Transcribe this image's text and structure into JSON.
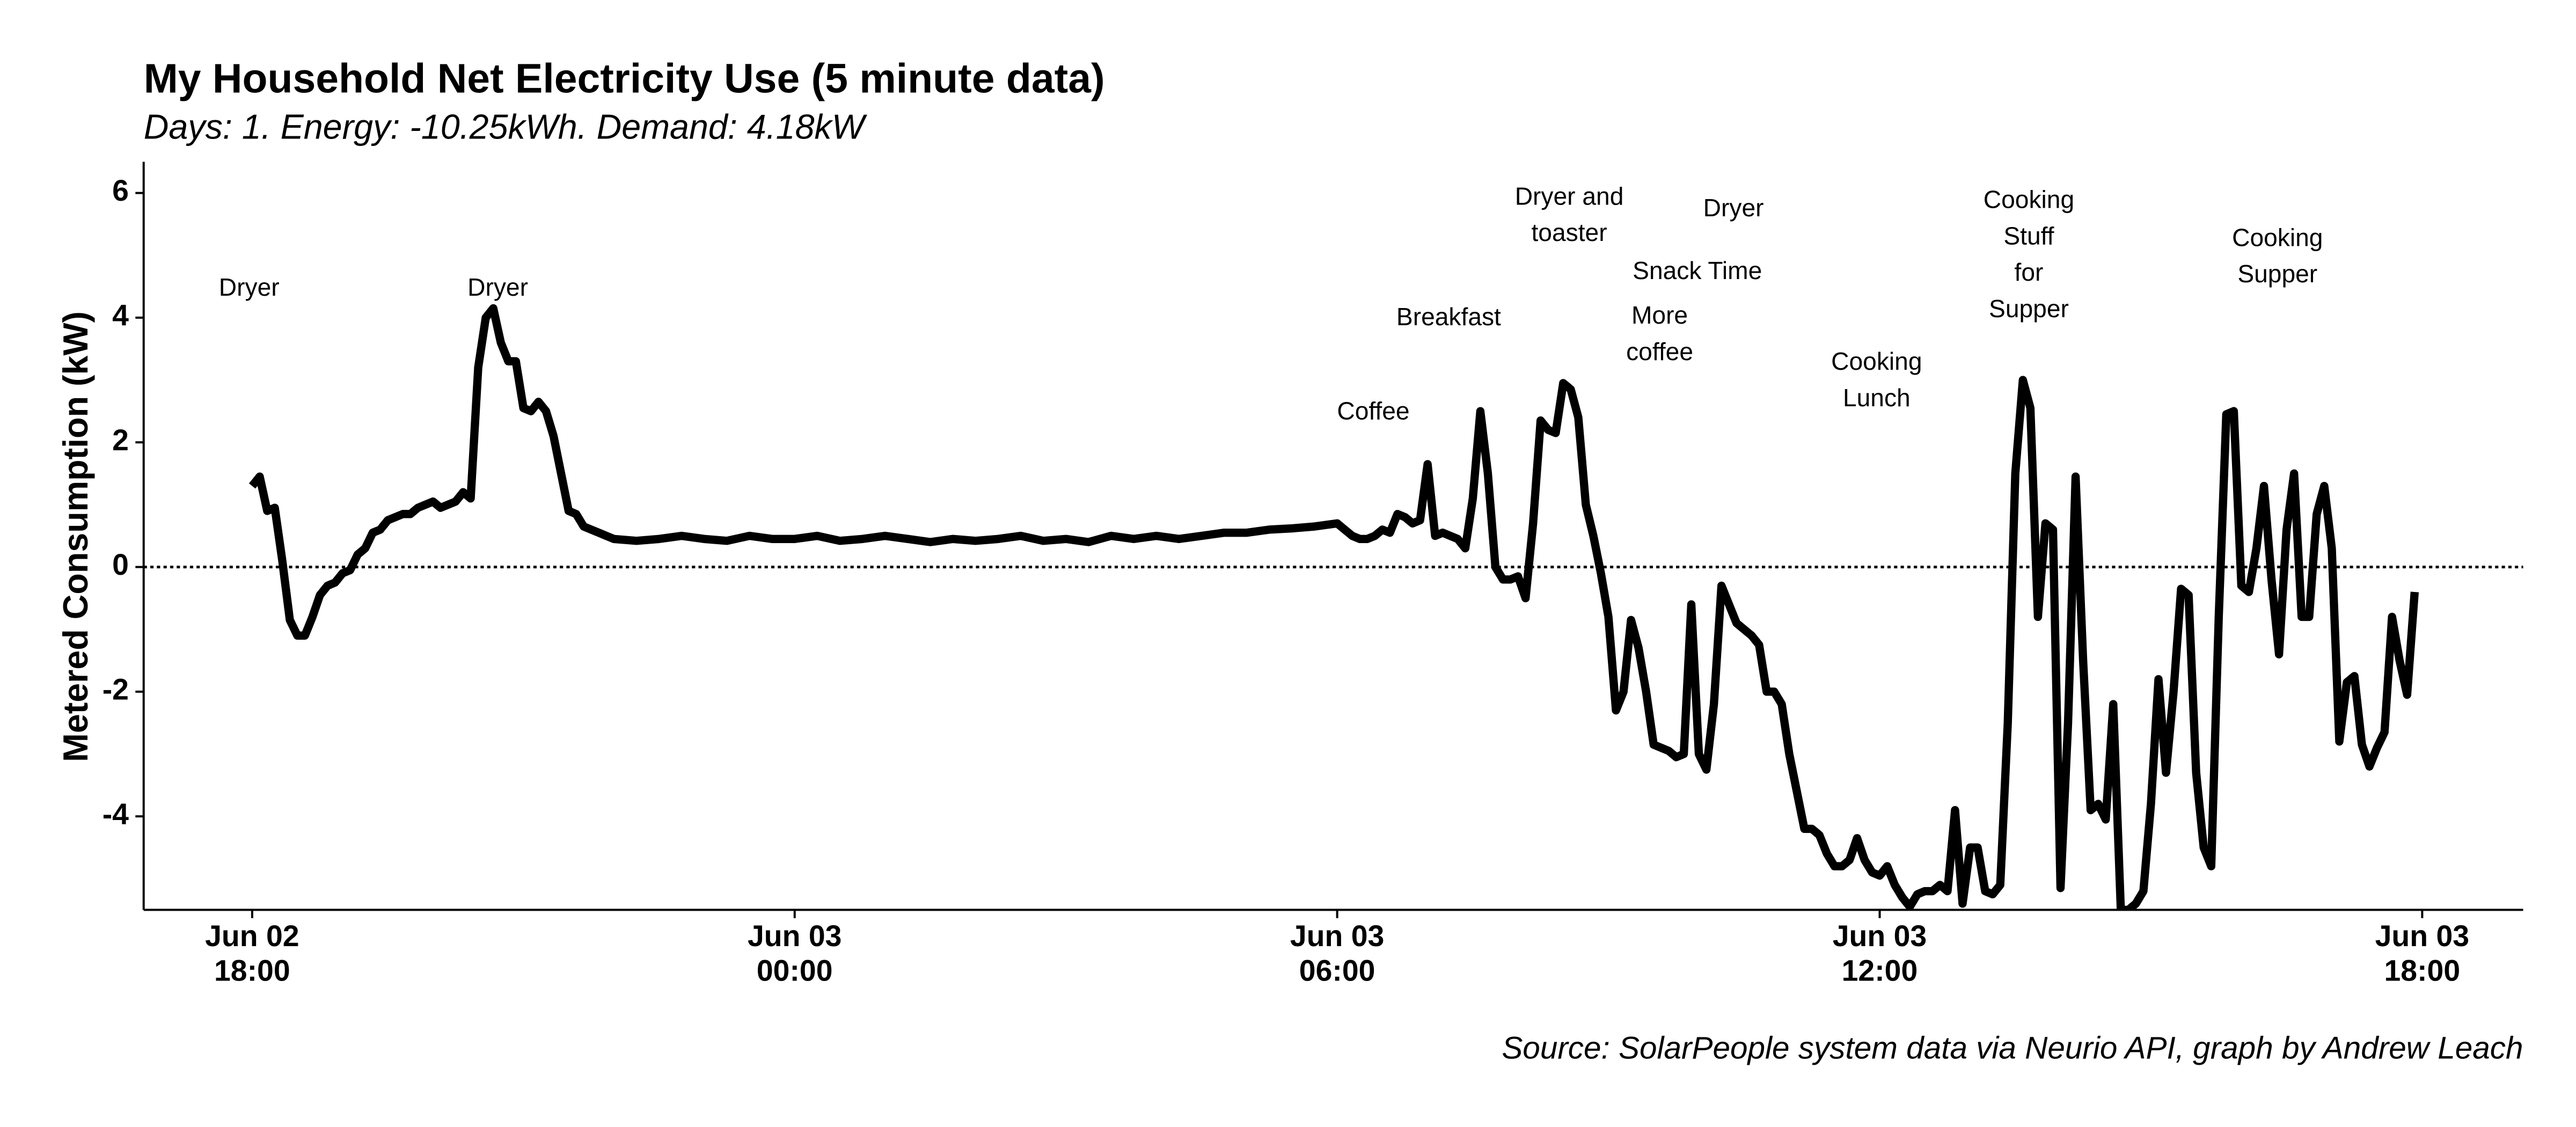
{
  "chart_data": {
    "type": "line",
    "title": "My Household Net Electricity Use (5 minute data)",
    "subtitle": "Days: 1. Energy: -10.25kWh. Demand: 4.18kW",
    "y_label": "Metered Consumption (kW)",
    "caption": "Source: SolarPeople system data via Neurio API, graph by Andrew Leach",
    "color": "#000000",
    "hline": 0,
    "xlim": [
      "Jun 02 16:48",
      "Jun 03 19:07"
    ],
    "xticks": [
      {
        "value": "Jun 02 18:00",
        "label": "Jun 02\n18:00"
      },
      {
        "value": "Jun 03 00:00",
        "label": "Jun 03\n00:00"
      },
      {
        "value": "Jun 03 06:00",
        "label": "Jun 03\n06:00"
      },
      {
        "value": "Jun 03 12:00",
        "label": "Jun 03\n12:00"
      },
      {
        "value": "Jun 03 18:00",
        "label": "Jun 03\n18:00"
      }
    ],
    "ylim": [
      -5.5,
      6.5
    ],
    "yticks": [
      -4,
      -2,
      0,
      2,
      4,
      6
    ],
    "grid": false,
    "x": [
      "Jun 02 18:00",
      "Jun 02 18:05",
      "Jun 02 18:10",
      "Jun 02 18:15",
      "Jun 02 18:20",
      "Jun 02 18:25",
      "Jun 02 18:30",
      "Jun 02 18:35",
      "Jun 02 18:40",
      "Jun 02 18:45",
      "Jun 02 18:50",
      "Jun 02 18:55",
      "Jun 02 19:00",
      "Jun 02 19:05",
      "Jun 02 19:10",
      "Jun 02 19:15",
      "Jun 02 19:20",
      "Jun 02 19:25",
      "Jun 02 19:30",
      "Jun 02 19:35",
      "Jun 02 19:40",
      "Jun 02 19:45",
      "Jun 02 19:50",
      "Jun 02 19:55",
      "Jun 02 20:00",
      "Jun 02 20:05",
      "Jun 02 20:10",
      "Jun 02 20:15",
      "Jun 02 20:20",
      "Jun 02 20:25",
      "Jun 02 20:30",
      "Jun 02 20:35",
      "Jun 02 20:40",
      "Jun 02 20:45",
      "Jun 02 20:50",
      "Jun 02 20:55",
      "Jun 02 21:00",
      "Jun 02 21:05",
      "Jun 02 21:10",
      "Jun 02 21:15",
      "Jun 02 21:20",
      "Jun 02 21:25",
      "Jun 02 21:30",
      "Jun 02 21:35",
      "Jun 02 21:40",
      "Jun 02 21:45",
      "Jun 02 21:50",
      "Jun 02 21:55",
      "Jun 02 22:00",
      "Jun 02 22:15",
      "Jun 02 22:30",
      "Jun 02 22:45",
      "Jun 02 23:00",
      "Jun 02 23:15",
      "Jun 02 23:30",
      "Jun 02 23:45",
      "Jun 03 00:00",
      "Jun 03 00:15",
      "Jun 03 00:30",
      "Jun 03 00:45",
      "Jun 03 01:00",
      "Jun 03 01:15",
      "Jun 03 01:30",
      "Jun 03 01:45",
      "Jun 03 02:00",
      "Jun 03 02:15",
      "Jun 03 02:30",
      "Jun 03 02:45",
      "Jun 03 03:00",
      "Jun 03 03:15",
      "Jun 03 03:30",
      "Jun 03 03:45",
      "Jun 03 04:00",
      "Jun 03 04:15",
      "Jun 03 04:30",
      "Jun 03 04:45",
      "Jun 03 05:00",
      "Jun 03 05:15",
      "Jun 03 05:30",
      "Jun 03 05:45",
      "Jun 03 06:00",
      "Jun 03 06:05",
      "Jun 03 06:10",
      "Jun 03 06:15",
      "Jun 03 06:20",
      "Jun 03 06:25",
      "Jun 03 06:30",
      "Jun 03 06:35",
      "Jun 03 06:40",
      "Jun 03 06:45",
      "Jun 03 06:50",
      "Jun 03 06:55",
      "Jun 03 07:00",
      "Jun 03 07:05",
      "Jun 03 07:10",
      "Jun 03 07:15",
      "Jun 03 07:20",
      "Jun 03 07:25",
      "Jun 03 07:30",
      "Jun 03 07:35",
      "Jun 03 07:40",
      "Jun 03 07:45",
      "Jun 03 07:50",
      "Jun 03 07:55",
      "Jun 03 08:00",
      "Jun 03 08:05",
      "Jun 03 08:10",
      "Jun 03 08:15",
      "Jun 03 08:20",
      "Jun 03 08:25",
      "Jun 03 08:30",
      "Jun 03 08:35",
      "Jun 03 08:40",
      "Jun 03 08:45",
      "Jun 03 08:50",
      "Jun 03 08:55",
      "Jun 03 09:00",
      "Jun 03 09:05",
      "Jun 03 09:10",
      "Jun 03 09:15",
      "Jun 03 09:20",
      "Jun 03 09:25",
      "Jun 03 09:30",
      "Jun 03 09:35",
      "Jun 03 09:40",
      "Jun 03 09:45",
      "Jun 03 09:50",
      "Jun 03 09:55",
      "Jun 03 10:00",
      "Jun 03 10:05",
      "Jun 03 10:10",
      "Jun 03 10:15",
      "Jun 03 10:20",
      "Jun 03 10:25",
      "Jun 03 10:30",
      "Jun 03 10:35",
      "Jun 03 10:40",
      "Jun 03 10:45",
      "Jun 03 10:50",
      "Jun 03 10:55",
      "Jun 03 11:00",
      "Jun 03 11:05",
      "Jun 03 11:10",
      "Jun 03 11:15",
      "Jun 03 11:20",
      "Jun 03 11:25",
      "Jun 03 11:30",
      "Jun 03 11:35",
      "Jun 03 11:40",
      "Jun 03 11:45",
      "Jun 03 11:50",
      "Jun 03 11:55",
      "Jun 03 12:00",
      "Jun 03 12:05",
      "Jun 03 12:10",
      "Jun 03 12:15",
      "Jun 03 12:20",
      "Jun 03 12:25",
      "Jun 03 12:30",
      "Jun 03 12:35",
      "Jun 03 12:40",
      "Jun 03 12:45",
      "Jun 03 12:50",
      "Jun 03 12:55",
      "Jun 03 13:00",
      "Jun 03 13:05",
      "Jun 03 13:10",
      "Jun 03 13:15",
      "Jun 03 13:20",
      "Jun 03 13:25",
      "Jun 03 13:30",
      "Jun 03 13:35",
      "Jun 03 13:40",
      "Jun 03 13:45",
      "Jun 03 13:50",
      "Jun 03 13:55",
      "Jun 03 14:00",
      "Jun 03 14:05",
      "Jun 03 14:10",
      "Jun 03 14:15",
      "Jun 03 14:20",
      "Jun 03 14:25",
      "Jun 03 14:30",
      "Jun 03 14:35",
      "Jun 03 14:40",
      "Jun 03 14:45",
      "Jun 03 14:50",
      "Jun 03 14:55",
      "Jun 03 15:00",
      "Jun 03 15:05",
      "Jun 03 15:10",
      "Jun 03 15:15",
      "Jun 03 15:20",
      "Jun 03 15:25",
      "Jun 03 15:30",
      "Jun 03 15:35",
      "Jun 03 15:40",
      "Jun 03 15:45",
      "Jun 03 15:50",
      "Jun 03 15:55",
      "Jun 03 16:00",
      "Jun 03 16:05",
      "Jun 03 16:10",
      "Jun 03 16:15",
      "Jun 03 16:20",
      "Jun 03 16:25",
      "Jun 03 16:30",
      "Jun 03 16:35",
      "Jun 03 16:40",
      "Jun 03 16:45",
      "Jun 03 16:50",
      "Jun 03 16:55",
      "Jun 03 17:00",
      "Jun 03 17:05",
      "Jun 03 17:10",
      "Jun 03 17:15",
      "Jun 03 17:20",
      "Jun 03 17:25",
      "Jun 03 17:30",
      "Jun 03 17:35",
      "Jun 03 17:40",
      "Jun 03 17:45",
      "Jun 03 17:50",
      "Jun 03 17:55"
    ],
    "values": [
      1.3,
      1.45,
      0.9,
      0.95,
      0.1,
      -0.85,
      -1.1,
      -1.1,
      -0.8,
      -0.45,
      -0.3,
      -0.25,
      -0.1,
      -0.05,
      0.2,
      0.3,
      0.55,
      0.6,
      0.75,
      0.8,
      0.85,
      0.85,
      0.95,
      1.0,
      1.05,
      0.95,
      1.0,
      1.05,
      1.2,
      1.1,
      3.2,
      4.0,
      4.15,
      3.6,
      3.3,
      3.3,
      2.55,
      2.5,
      2.65,
      2.5,
      2.1,
      1.5,
      0.9,
      0.85,
      0.65,
      0.6,
      0.55,
      0.5,
      0.45,
      0.42,
      0.45,
      0.5,
      0.45,
      0.42,
      0.5,
      0.45,
      0.45,
      0.5,
      0.42,
      0.45,
      0.5,
      0.45,
      0.4,
      0.45,
      0.42,
      0.45,
      0.5,
      0.42,
      0.45,
      0.4,
      0.5,
      0.45,
      0.5,
      0.45,
      0.5,
      0.55,
      0.55,
      0.6,
      0.62,
      0.65,
      0.7,
      0.6,
      0.5,
      0.45,
      0.45,
      0.5,
      0.6,
      0.55,
      0.85,
      0.8,
      0.7,
      0.75,
      1.65,
      0.5,
      0.55,
      0.5,
      0.45,
      0.3,
      1.1,
      2.5,
      1.5,
      0.0,
      -0.2,
      -0.2,
      -0.15,
      -0.5,
      0.7,
      2.35,
      2.2,
      2.15,
      2.95,
      2.85,
      2.4,
      1.0,
      0.5,
      -0.1,
      -0.8,
      -2.3,
      -2.0,
      -0.85,
      -1.3,
      -2.0,
      -2.85,
      -2.9,
      -2.95,
      -3.05,
      -3.0,
      -0.6,
      -3.0,
      -3.25,
      -2.2,
      -0.3,
      -0.6,
      -0.9,
      -1.0,
      -1.1,
      -1.25,
      -2.0,
      -2.0,
      -2.2,
      -3.0,
      -3.6,
      -4.2,
      -4.2,
      -4.3,
      -4.6,
      -4.8,
      -4.8,
      -4.7,
      -4.35,
      -4.7,
      -4.9,
      -4.95,
      -4.8,
      -5.1,
      -5.3,
      -5.45,
      -5.25,
      -5.2,
      -5.2,
      -5.1,
      -5.2,
      -3.9,
      -5.4,
      -4.5,
      -4.5,
      -5.2,
      -5.25,
      -5.1,
      -2.5,
      1.5,
      3.0,
      2.55,
      -0.8,
      0.7,
      0.6,
      -5.15,
      -2.5,
      1.45,
      -1.5,
      -3.9,
      -3.8,
      -4.05,
      -2.2,
      -5.5,
      -5.5,
      -5.4,
      -5.2,
      -3.8,
      -1.8,
      -3.3,
      -2.0,
      -0.35,
      -0.45,
      -3.3,
      -4.5,
      -4.8,
      -0.8,
      2.45,
      2.5,
      -0.3,
      -0.4,
      0.3,
      1.3,
      -0.2,
      -1.4,
      0.6,
      1.5,
      -0.8,
      -0.8,
      0.85,
      1.3,
      0.3,
      -2.8,
      -1.85,
      -1.75,
      -2.85,
      -3.2,
      -2.9,
      -2.65,
      -0.8,
      -1.5,
      -2.05,
      -0.4
    ],
    "annotations": [
      {
        "text": "Dryer",
        "x": "Jun 02 17:58",
        "y": 4.46
      },
      {
        "text": "Dryer",
        "x": "Jun 02 20:43",
        "y": 4.46
      },
      {
        "text": "Coffee",
        "x": "Jun 03 06:24",
        "y": 2.47
      },
      {
        "text": "Breakfast",
        "x": "Jun 03 07:14",
        "y": 3.98
      },
      {
        "text": "Dryer and\ntoaster",
        "x": "Jun 03 08:34",
        "y": 5.62
      },
      {
        "text": "Dryer",
        "x": "Jun 03 10:23",
        "y": 5.73
      },
      {
        "text": "Snack Time",
        "x": "Jun 03 09:59",
        "y": 4.72
      },
      {
        "text": "More\ncoffee",
        "x": "Jun 03 09:34",
        "y": 3.71
      },
      {
        "text": "Cooking\nLunch",
        "x": "Jun 03 11:58",
        "y": 2.97
      },
      {
        "text": "Cooking\nStuff\nfor\nSupper",
        "x": "Jun 03 13:39",
        "y": 4.99
      },
      {
        "text": "Cooking\nSupper",
        "x": "Jun 03 16:24",
        "y": 4.96
      }
    ]
  }
}
